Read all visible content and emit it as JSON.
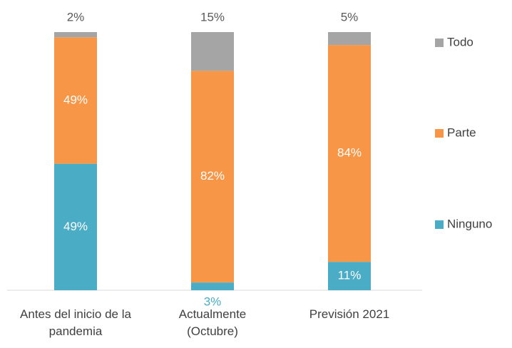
{
  "chart_data": {
    "type": "stacked_bar",
    "categories": [
      "Antes del inicio de la pandemia",
      "Actualmente (Octubre)",
      "Previsión 2021"
    ],
    "series": [
      {
        "name": "Ninguno",
        "color": "#4bacc6",
        "values": [
          49,
          3,
          11
        ],
        "value_labels": [
          "49%",
          "3%",
          "11%"
        ]
      },
      {
        "name": "Parte",
        "color": "#f79646",
        "values": [
          49,
          82,
          84
        ],
        "value_labels": [
          "49%",
          "82%",
          "84%"
        ]
      },
      {
        "name": "Todo",
        "color": "#a5a5a5",
        "values": [
          2,
          15,
          5
        ],
        "value_labels": [
          "2%",
          "15%",
          "5%"
        ]
      }
    ],
    "ylim": [
      0,
      100
    ]
  }
}
